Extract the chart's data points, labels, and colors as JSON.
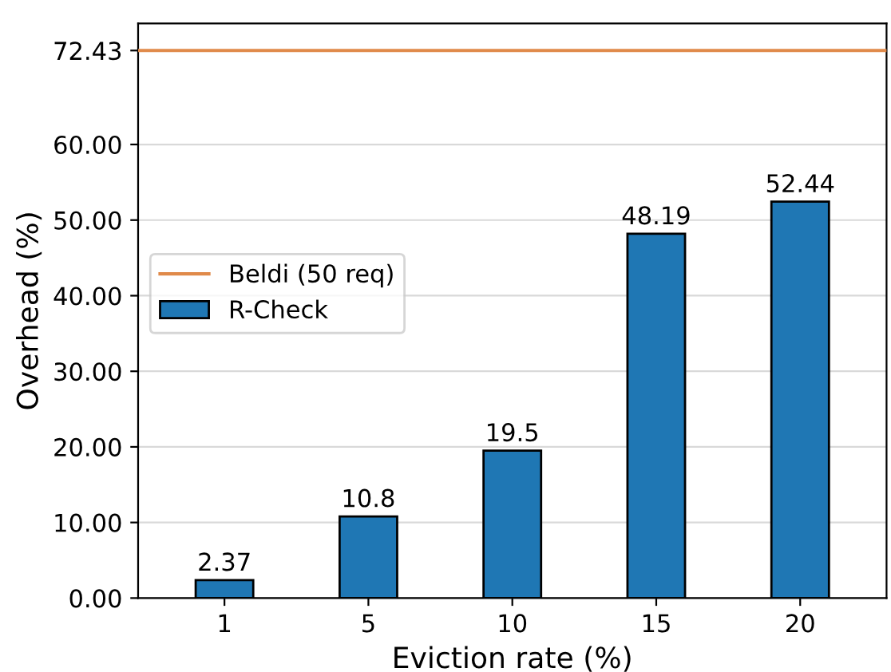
{
  "chart_data": {
    "type": "bar",
    "xlabel": "Eviction rate (%)",
    "ylabel": "Overhead (%)",
    "categories": [
      "1",
      "5",
      "10",
      "15",
      "20"
    ],
    "series": [
      {
        "name": "R-Check",
        "color": "#1f77b4",
        "values": [
          2.37,
          10.8,
          19.5,
          48.19,
          52.44
        ]
      }
    ],
    "value_labels": [
      "2.37",
      "10.8",
      "19.5",
      "48.19",
      "52.44"
    ],
    "ylim": [
      0,
      76
    ],
    "yticks": [
      {
        "value": 0,
        "label": "0.00"
      },
      {
        "value": 10,
        "label": "10.00"
      },
      {
        "value": 20,
        "label": "20.00"
      },
      {
        "value": 30,
        "label": "30.00"
      },
      {
        "value": 40,
        "label": "40.00"
      },
      {
        "value": 50,
        "label": "50.00"
      },
      {
        "value": 60,
        "label": "60.00"
      },
      72.43
    ],
    "ref_lines": [
      {
        "axis": "y",
        "value": 72.43,
        "label": "Beldi (50 req)",
        "color": "#e08a4a",
        "line_style": "solid"
      }
    ],
    "grid": "y",
    "legend": "center left"
  }
}
